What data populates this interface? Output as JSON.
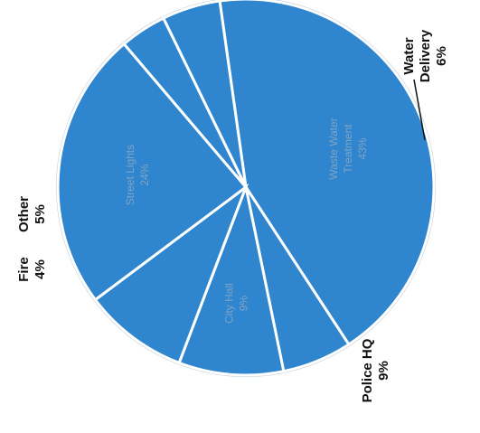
{
  "chart_data": {
    "type": "pie",
    "rotation": "rotated 90 degrees counterclockwise",
    "slices": [
      {
        "label": "Waste Water Treatment",
        "value": 43,
        "value_label": "43%",
        "label_position": "inside"
      },
      {
        "label": "Water Delivery",
        "value": 6,
        "value_label": "6%",
        "label_position": "outside"
      },
      {
        "label": "City Hall",
        "value": 9,
        "value_label": "9%",
        "label_position": "inside"
      },
      {
        "label": "Police HQ",
        "value": 9,
        "value_label": "9%",
        "label_position": "outside"
      },
      {
        "label": "Street Lights",
        "value": 24,
        "value_label": "24%",
        "label_position": "inside"
      },
      {
        "label": "Fire",
        "value": 4,
        "value_label": "4%",
        "label_position": "outside"
      },
      {
        "label": "Other",
        "value": 5,
        "value_label": "5%",
        "label_position": "outside"
      }
    ],
    "colors": {
      "slice_fill": "#2f86cf",
      "separator": "#ffffff",
      "outline": "#b8c8d8",
      "inside_text": "#7fa3c4",
      "outside_text": "#111111"
    }
  }
}
